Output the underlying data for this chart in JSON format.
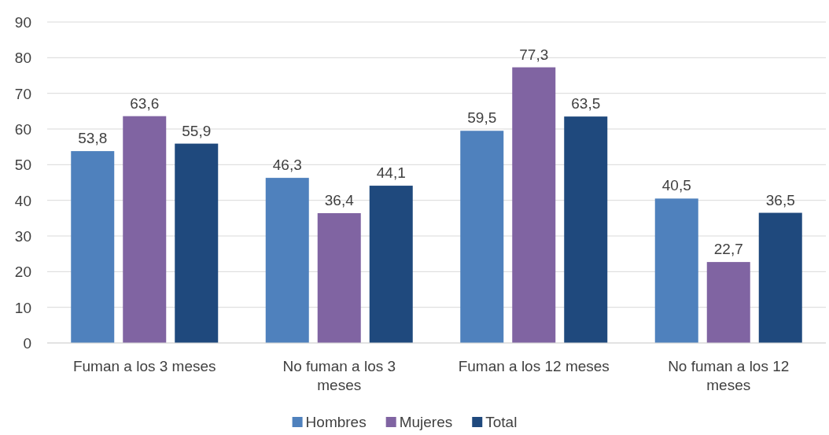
{
  "chart_data": {
    "type": "bar",
    "categories": [
      "Fuman a los 3 meses",
      "No fuman a los 3 meses",
      "Fuman a los 12 meses",
      "No fuman a los 12 meses"
    ],
    "series": [
      {
        "name": "Hombres",
        "color": "#4f81bd",
        "values": [
          53.8,
          46.3,
          59.5,
          40.5
        ],
        "value_labels": [
          "53,8",
          "46,3",
          "59,5",
          "40,5"
        ]
      },
      {
        "name": "Mujeres",
        "color": "#8064a2",
        "values": [
          63.6,
          36.4,
          77.3,
          22.7
        ],
        "value_labels": [
          "63,6",
          "36,4",
          "77,3",
          "22,7"
        ]
      },
      {
        "name": "Total",
        "color": "#1f497d",
        "values": [
          55.9,
          44.1,
          63.5,
          36.5
        ],
        "value_labels": [
          "55,9",
          "44,1",
          "63,5",
          "36,5"
        ]
      }
    ],
    "ylim": [
      0,
      90
    ],
    "yticks": [
      0,
      10,
      20,
      30,
      40,
      50,
      60,
      70,
      80,
      90
    ],
    "grid": "y",
    "legend": "bottom"
  }
}
